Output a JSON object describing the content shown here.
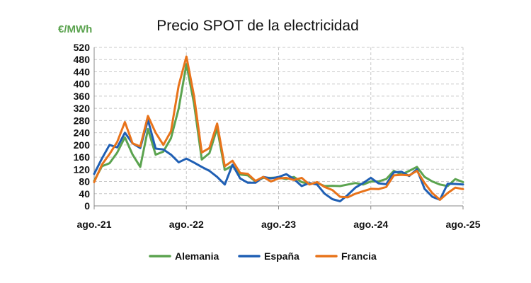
{
  "chart_data": {
    "type": "line",
    "title": "Precio SPOT de la electricidad",
    "ylabel": "€/MWh",
    "xlabel": "",
    "ylim": [
      0,
      520
    ],
    "yticks": [
      0,
      40,
      80,
      120,
      160,
      200,
      240,
      280,
      320,
      360,
      400,
      440,
      480,
      520
    ],
    "grid": true,
    "legend_position": "bottom",
    "x_tick_labels": [
      {
        "label": "ago.-21",
        "index": 0
      },
      {
        "label": "ago.-22",
        "index": 12
      },
      {
        "label": "ago.-23",
        "index": 24
      },
      {
        "label": "ago.-24",
        "index": 36
      },
      {
        "label": "ago.-25",
        "index": 48
      }
    ],
    "series": [
      {
        "name": "Alemania",
        "color": "#5ba34f",
        "values": [
          82,
          130,
          140,
          175,
          225,
          168,
          128,
          252,
          168,
          178,
          222,
          320,
          465,
          335,
          152,
          173,
          255,
          118,
          132,
          103,
          100,
          80,
          92,
          92,
          93,
          88,
          95,
          78,
          72,
          75,
          65,
          66,
          65,
          70,
          75,
          70,
          80,
          80,
          88,
          115,
          103,
          115,
          128,
          95,
          80,
          70,
          65,
          88,
          78
        ]
      },
      {
        "name": "España",
        "color": "#1f5fb4",
        "values": [
          105,
          155,
          200,
          192,
          240,
          205,
          190,
          282,
          188,
          185,
          168,
          143,
          155,
          142,
          128,
          115,
          95,
          70,
          135,
          90,
          76,
          76,
          95,
          90,
          95,
          104,
          88,
          65,
          75,
          70,
          40,
          22,
          15,
          36,
          60,
          75,
          92,
          74,
          71,
          110,
          112,
          98,
          120,
          56,
          30,
          20,
          73,
          72,
          70
        ]
      },
      {
        "name": "Francia",
        "color": "#e8731a",
        "values": [
          78,
          135,
          170,
          210,
          275,
          205,
          195,
          295,
          240,
          200,
          245,
          395,
          490,
          360,
          175,
          190,
          270,
          130,
          148,
          108,
          105,
          82,
          95,
          80,
          90,
          92,
          85,
          92,
          70,
          78,
          62,
          52,
          30,
          28,
          40,
          48,
          56,
          55,
          62,
          100,
          102,
          100,
          115,
          75,
          42,
          20,
          42,
          60,
          55
        ]
      }
    ]
  }
}
